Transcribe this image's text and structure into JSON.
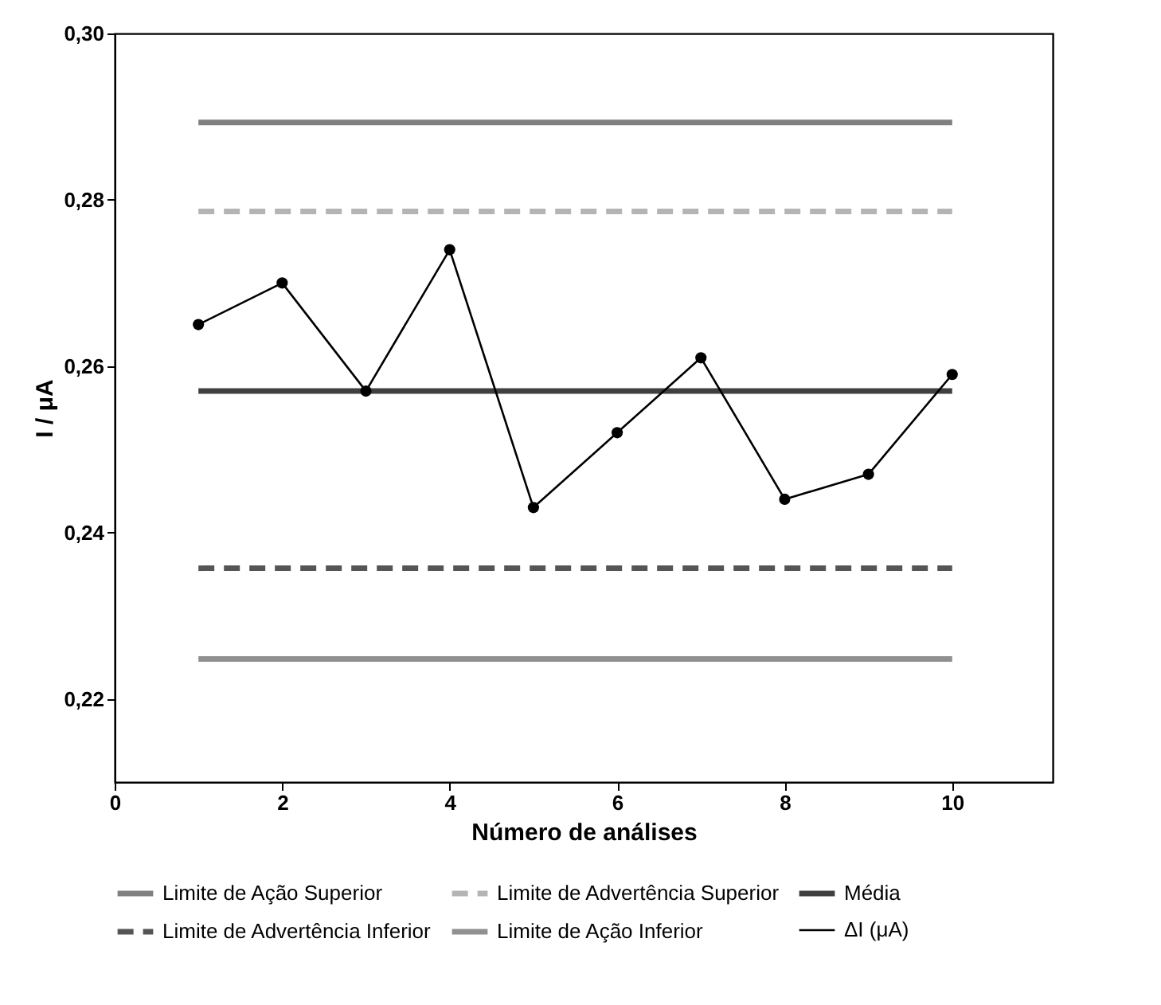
{
  "chart_data": {
    "type": "line",
    "xlabel": "Número de análises",
    "ylabel": "I / μA",
    "xlim": [
      0,
      11.2
    ],
    "xticks": [
      0,
      2,
      4,
      6,
      8,
      10
    ],
    "ylim": [
      0.21,
      0.3
    ],
    "yticks": [
      {
        "value": 0.22,
        "label": "0,22"
      },
      {
        "value": 0.24,
        "label": "0,24"
      },
      {
        "value": 0.26,
        "label": "0,26"
      },
      {
        "value": 0.28,
        "label": "0,28"
      },
      {
        "value": 0.3,
        "label": "0,30"
      }
    ],
    "grid": false,
    "legend": "bottom",
    "series": [
      {
        "name": "Limite de Ação Superior",
        "color": "#808080",
        "line_style": "solid",
        "x": [
          1,
          10
        ],
        "values": [
          0.2893,
          0.2893
        ]
      },
      {
        "name": "Limite de Advertência Superior",
        "color": "#b4b4b4",
        "line_style": "dashed",
        "x": [
          1,
          10
        ],
        "values": [
          0.2786,
          0.2786
        ]
      },
      {
        "name": "Média",
        "color": "#404040",
        "line_style": "solid",
        "x": [
          1,
          10
        ],
        "values": [
          0.257,
          0.257
        ]
      },
      {
        "name": "Limite de Advertência Inferior",
        "color": "#555555",
        "line_style": "dashed",
        "x": [
          1,
          10
        ],
        "values": [
          0.2357,
          0.2357
        ]
      },
      {
        "name": "Limite de Ação Inferior",
        "color": "#909090",
        "line_style": "solid",
        "x": [
          1,
          10
        ],
        "values": [
          0.2248,
          0.2248
        ]
      },
      {
        "name": "ΔI (μA)",
        "color": "#000000",
        "line_style": "solid",
        "marker": "circle",
        "x": [
          1,
          2,
          3,
          4,
          5,
          6,
          7,
          8,
          9,
          10
        ],
        "values": [
          0.265,
          0.27,
          0.257,
          0.274,
          0.243,
          0.252,
          0.261,
          0.244,
          0.247,
          0.259
        ]
      }
    ]
  }
}
